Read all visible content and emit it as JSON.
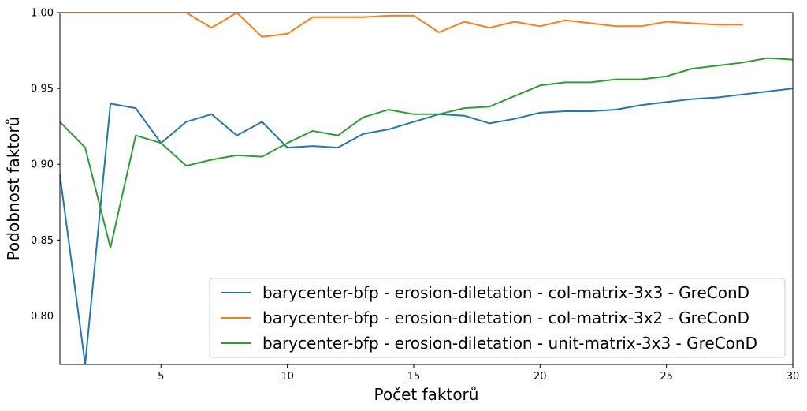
{
  "chart_data": {
    "type": "line",
    "xlabel": "Počet faktorů",
    "ylabel": "Podobnost faktorů",
    "xlim": [
      1,
      30
    ],
    "ylim": [
      0.768,
      1.0
    ],
    "xticks": [
      5,
      10,
      15,
      20,
      25,
      30
    ],
    "yticks": [
      0.8,
      0.85,
      0.9,
      0.95,
      1.0
    ],
    "ytick_labels": [
      "0.80",
      "0.85",
      "0.90",
      "0.95",
      "1.00"
    ],
    "legend_position": "lower-right",
    "grid": false,
    "series": [
      {
        "name": "barycenter-bfp - erosion-diletation - col-matrix-3x3 - GreConD",
        "color": "#1f77b4",
        "x": [
          1,
          2,
          3,
          4,
          5,
          6,
          7,
          8,
          9,
          10,
          11,
          12,
          13,
          14,
          15,
          16,
          17,
          18,
          19,
          20,
          21,
          22,
          23,
          24,
          25,
          26,
          27,
          28,
          29,
          30
        ],
        "y": [
          0.893,
          0.768,
          0.94,
          0.937,
          0.914,
          0.928,
          0.933,
          0.919,
          0.928,
          0.911,
          0.912,
          0.911,
          0.92,
          0.923,
          0.928,
          0.933,
          0.932,
          0.927,
          0.93,
          0.934,
          0.935,
          0.935,
          0.936,
          0.939,
          0.941,
          0.943,
          0.944,
          0.946,
          0.948,
          0.95
        ]
      },
      {
        "name": "barycenter-bfp - erosion-diletation - col-matrix-3x2 - GreConD",
        "color": "#ff7f0e",
        "x": [
          1,
          2,
          3,
          4,
          5,
          6,
          7,
          8,
          9,
          10,
          11,
          12,
          13,
          14,
          15,
          16,
          17,
          18,
          19,
          20,
          21,
          22,
          23,
          24,
          25,
          26,
          27,
          28
        ],
        "y": [
          1.0,
          1.0,
          1.0,
          1.0,
          1.0,
          1.0,
          0.99,
          1.0,
          0.984,
          0.986,
          0.997,
          0.997,
          0.997,
          0.998,
          0.998,
          0.987,
          0.994,
          0.99,
          0.994,
          0.991,
          0.995,
          0.993,
          0.991,
          0.991,
          0.994,
          0.993,
          0.992,
          0.992
        ]
      },
      {
        "name": "barycenter-bfp - erosion-diletation - unit-matrix-3x3 - GreConD",
        "color": "#2ca02c",
        "x": [
          1,
          2,
          3,
          4,
          5,
          6,
          7,
          8,
          9,
          10,
          11,
          12,
          13,
          14,
          15,
          16,
          17,
          18,
          19,
          20,
          21,
          22,
          23,
          24,
          25,
          26,
          27,
          28,
          29,
          30
        ],
        "y": [
          0.928,
          0.911,
          0.845,
          0.919,
          0.914,
          0.899,
          0.903,
          0.906,
          0.905,
          0.914,
          0.922,
          0.919,
          0.931,
          0.936,
          0.933,
          0.933,
          0.937,
          0.938,
          0.945,
          0.952,
          0.954,
          0.954,
          0.956,
          0.956,
          0.958,
          0.963,
          0.965,
          0.967,
          0.97,
          0.969
        ]
      }
    ]
  }
}
